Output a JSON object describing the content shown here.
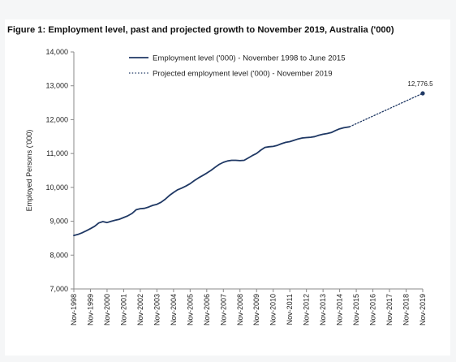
{
  "chart_data": {
    "type": "line",
    "title": "Figure 1: Employment level, past and projected growth to November 2019, Australia ('000)",
    "ylabel": "Employed Persons ('000)",
    "xlabel": "",
    "ylim": [
      7000,
      14000
    ],
    "yticks": [
      "7,000",
      "8,000",
      "9,000",
      "10,000",
      "11,000",
      "12,000",
      "13,000",
      "14,000"
    ],
    "ytick_values": [
      7000,
      8000,
      9000,
      10000,
      11000,
      12000,
      13000,
      14000
    ],
    "categories": [
      "Nov-1998",
      "Nov-1999",
      "Nov-2000",
      "Nov-2001",
      "Nov-2002",
      "Nov-2003",
      "Nov-2004",
      "Nov-2005",
      "Nov-2006",
      "Nov-2007",
      "Nov-2008",
      "Nov-2009",
      "Nov-2010",
      "Nov-2011",
      "Nov-2012",
      "Nov-2013",
      "Nov-2014",
      "Nov-2015",
      "Nov-2016",
      "Nov-2017",
      "Nov-2018",
      "Nov-2019"
    ],
    "grid": false,
    "legend_position": "top",
    "series": [
      {
        "name": "Employment level ('000) - November 1998 to June 2015",
        "style": "solid",
        "color": "#1f3864",
        "x": [
          1998.83,
          1999.08,
          1999.33,
          1999.58,
          1999.83,
          2000.08,
          2000.33,
          2000.58,
          2000.83,
          2001.08,
          2001.33,
          2001.58,
          2001.83,
          2002.08,
          2002.33,
          2002.58,
          2002.83,
          2003.08,
          2003.33,
          2003.58,
          2003.83,
          2004.08,
          2004.33,
          2004.58,
          2004.83,
          2005.08,
          2005.33,
          2005.58,
          2005.83,
          2006.08,
          2006.33,
          2006.58,
          2006.83,
          2007.08,
          2007.33,
          2007.58,
          2007.83,
          2008.08,
          2008.33,
          2008.58,
          2008.83,
          2009.08,
          2009.33,
          2009.58,
          2009.83,
          2010.08,
          2010.33,
          2010.58,
          2010.83,
          2011.08,
          2011.33,
          2011.58,
          2011.83,
          2012.08,
          2012.33,
          2012.58,
          2012.83,
          2013.08,
          2013.33,
          2013.58,
          2013.83,
          2014.08,
          2014.33,
          2014.58,
          2014.83,
          2015.08,
          2015.42
        ],
        "values": [
          8580,
          8610,
          8660,
          8720,
          8780,
          8850,
          8950,
          8990,
          8960,
          9000,
          9030,
          9060,
          9110,
          9160,
          9230,
          9340,
          9370,
          9380,
          9420,
          9470,
          9500,
          9560,
          9650,
          9760,
          9850,
          9930,
          9980,
          10040,
          10110,
          10200,
          10280,
          10350,
          10420,
          10500,
          10590,
          10680,
          10740,
          10780,
          10800,
          10800,
          10790,
          10800,
          10870,
          10940,
          11000,
          11100,
          11180,
          11200,
          11210,
          11240,
          11290,
          11330,
          11350,
          11390,
          11430,
          11460,
          11470,
          11480,
          11500,
          11540,
          11570,
          11590,
          11620,
          11680,
          11730,
          11760,
          11790
        ]
      },
      {
        "name": "Projected employment level ('000) - November 2019",
        "style": "dotted",
        "color": "#1f3864",
        "x": [
          2015.42,
          2019.83
        ],
        "values": [
          11790,
          12776.5
        ]
      }
    ],
    "annotations": [
      {
        "text": "12,776.5",
        "x": 2019.83,
        "y": 12776.5
      }
    ]
  }
}
